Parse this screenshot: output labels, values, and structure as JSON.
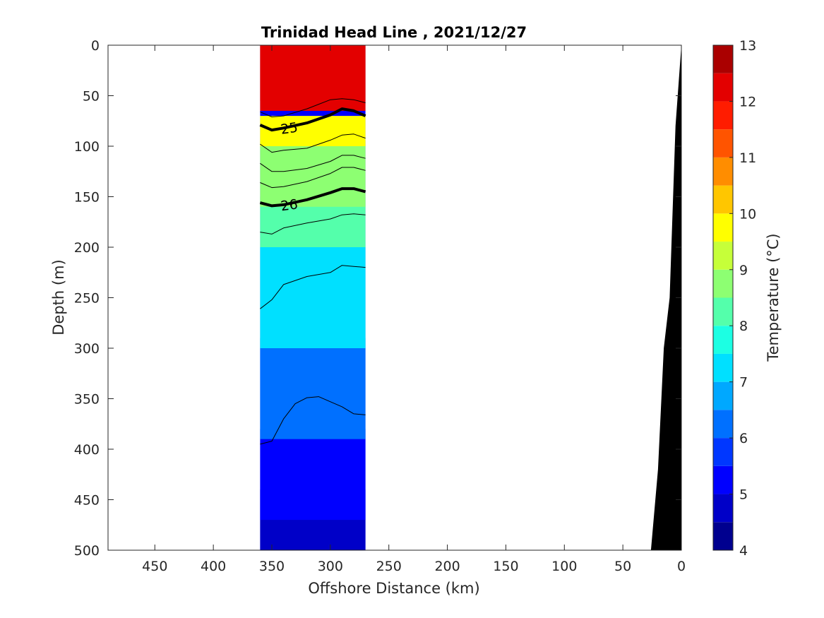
{
  "chart_data": {
    "type": "heatmap",
    "title": "Trinidad Head Line , 2021/12/27",
    "xlabel": "Offshore Distance (km)",
    "ylabel": "Depth (m)",
    "xlim": [
      490,
      0
    ],
    "ylim": [
      0,
      500
    ],
    "x_reversed": true,
    "y_reversed": true,
    "xticks": [
      450,
      400,
      350,
      300,
      250,
      200,
      150,
      100,
      50,
      0
    ],
    "yticks": [
      0,
      50,
      100,
      150,
      200,
      250,
      300,
      350,
      400,
      450,
      500
    ],
    "data_extent_km": [
      360,
      270
    ],
    "colorbar": {
      "label": "Temperature (°C)",
      "ticks": [
        4,
        5,
        6,
        7,
        8,
        9,
        10,
        11,
        12,
        13
      ],
      "levels": [
        4,
        4.5,
        5,
        5.5,
        6,
        6.5,
        7,
        7.5,
        8,
        8.5,
        9,
        9.5,
        10,
        10.5,
        11,
        11.5,
        12,
        12.5,
        13
      ],
      "colors": [
        "#00008f",
        "#0000c8",
        "#0000ff",
        "#0037ff",
        "#0070ff",
        "#00a8ff",
        "#00e0ff",
        "#1cffe3",
        "#54ffab",
        "#8dff72",
        "#c6ff39",
        "#ffff00",
        "#ffc600",
        "#ff8d00",
        "#ff5400",
        "#ff1c00",
        "#e30000",
        "#aa0000"
      ]
    },
    "temperature_depth_profile": [
      {
        "temp_band": "12-13",
        "depth_top": 0,
        "depth_bottom": 65
      },
      {
        "temp_band": "11-12",
        "depth_top": 0,
        "depth_bottom": 55
      },
      {
        "temp_band": "9.5-10.5",
        "depth_top": 70,
        "depth_bottom": 100
      },
      {
        "temp_band": "8.5-9.5",
        "depth_top": 95,
        "depth_bottom": 160
      },
      {
        "temp_band": "8-8.5",
        "depth_top": 150,
        "depth_bottom": 200
      },
      {
        "temp_band": "7-8",
        "depth_top": 200,
        "depth_bottom": 300
      },
      {
        "temp_band": "6-7",
        "depth_top": 290,
        "depth_bottom": 390
      },
      {
        "temp_band": "5-6",
        "depth_top": 380,
        "depth_bottom": 470
      },
      {
        "temp_band": "4.5-5",
        "depth_top": 440,
        "depth_bottom": 500
      }
    ],
    "density_contours": [
      {
        "label": "25",
        "bold": true,
        "x": [
          360,
          350,
          340,
          320,
          300,
          290,
          280,
          270
        ],
        "y": [
          79,
          84,
          82,
          77,
          69,
          63,
          65,
          70
        ]
      },
      {
        "label": "26",
        "bold": true,
        "x": [
          360,
          350,
          340,
          320,
          300,
          290,
          280,
          270
        ],
        "y": [
          156,
          159,
          158,
          153,
          146,
          142,
          142,
          145
        ]
      },
      {
        "label": "",
        "bold": false,
        "x": [
          360,
          350,
          340,
          320,
          300,
          290,
          280,
          270
        ],
        "y": [
          66,
          71,
          70,
          63,
          54,
          53,
          54,
          57
        ]
      },
      {
        "label": "",
        "bold": false,
        "x": [
          360,
          350,
          340,
          320,
          300,
          290,
          280,
          270
        ],
        "y": [
          98,
          106,
          104,
          102,
          94,
          89,
          88,
          92
        ]
      },
      {
        "label": "",
        "bold": false,
        "x": [
          360,
          350,
          340,
          320,
          300,
          290,
          280,
          270
        ],
        "y": [
          117,
          125,
          125,
          122,
          115,
          109,
          109,
          112
        ]
      },
      {
        "label": "",
        "bold": false,
        "x": [
          360,
          350,
          340,
          320,
          300,
          290,
          280,
          270
        ],
        "y": [
          136,
          141,
          140,
          135,
          127,
          121,
          121,
          124
        ]
      },
      {
        "label": "",
        "bold": false,
        "x": [
          360,
          350,
          340,
          320,
          300,
          290,
          280,
          270
        ],
        "y": [
          185,
          187,
          181,
          176,
          172,
          168,
          167,
          168
        ]
      },
      {
        "label": "",
        "bold": false,
        "x": [
          360,
          350,
          340,
          320,
          300,
          290,
          280,
          270
        ],
        "y": [
          261,
          252,
          237,
          229,
          225,
          218,
          219,
          220
        ]
      },
      {
        "label": "",
        "bold": false,
        "x": [
          360,
          350,
          340,
          330,
          320,
          310,
          300,
          290,
          280,
          270
        ],
        "y": [
          395,
          392,
          370,
          355,
          349,
          348,
          353,
          358,
          365,
          366
        ]
      }
    ],
    "shelf_profile": {
      "x": [
        0,
        5,
        10,
        15,
        20,
        26
      ],
      "y": [
        0,
        80,
        250,
        300,
        420,
        500
      ]
    }
  }
}
